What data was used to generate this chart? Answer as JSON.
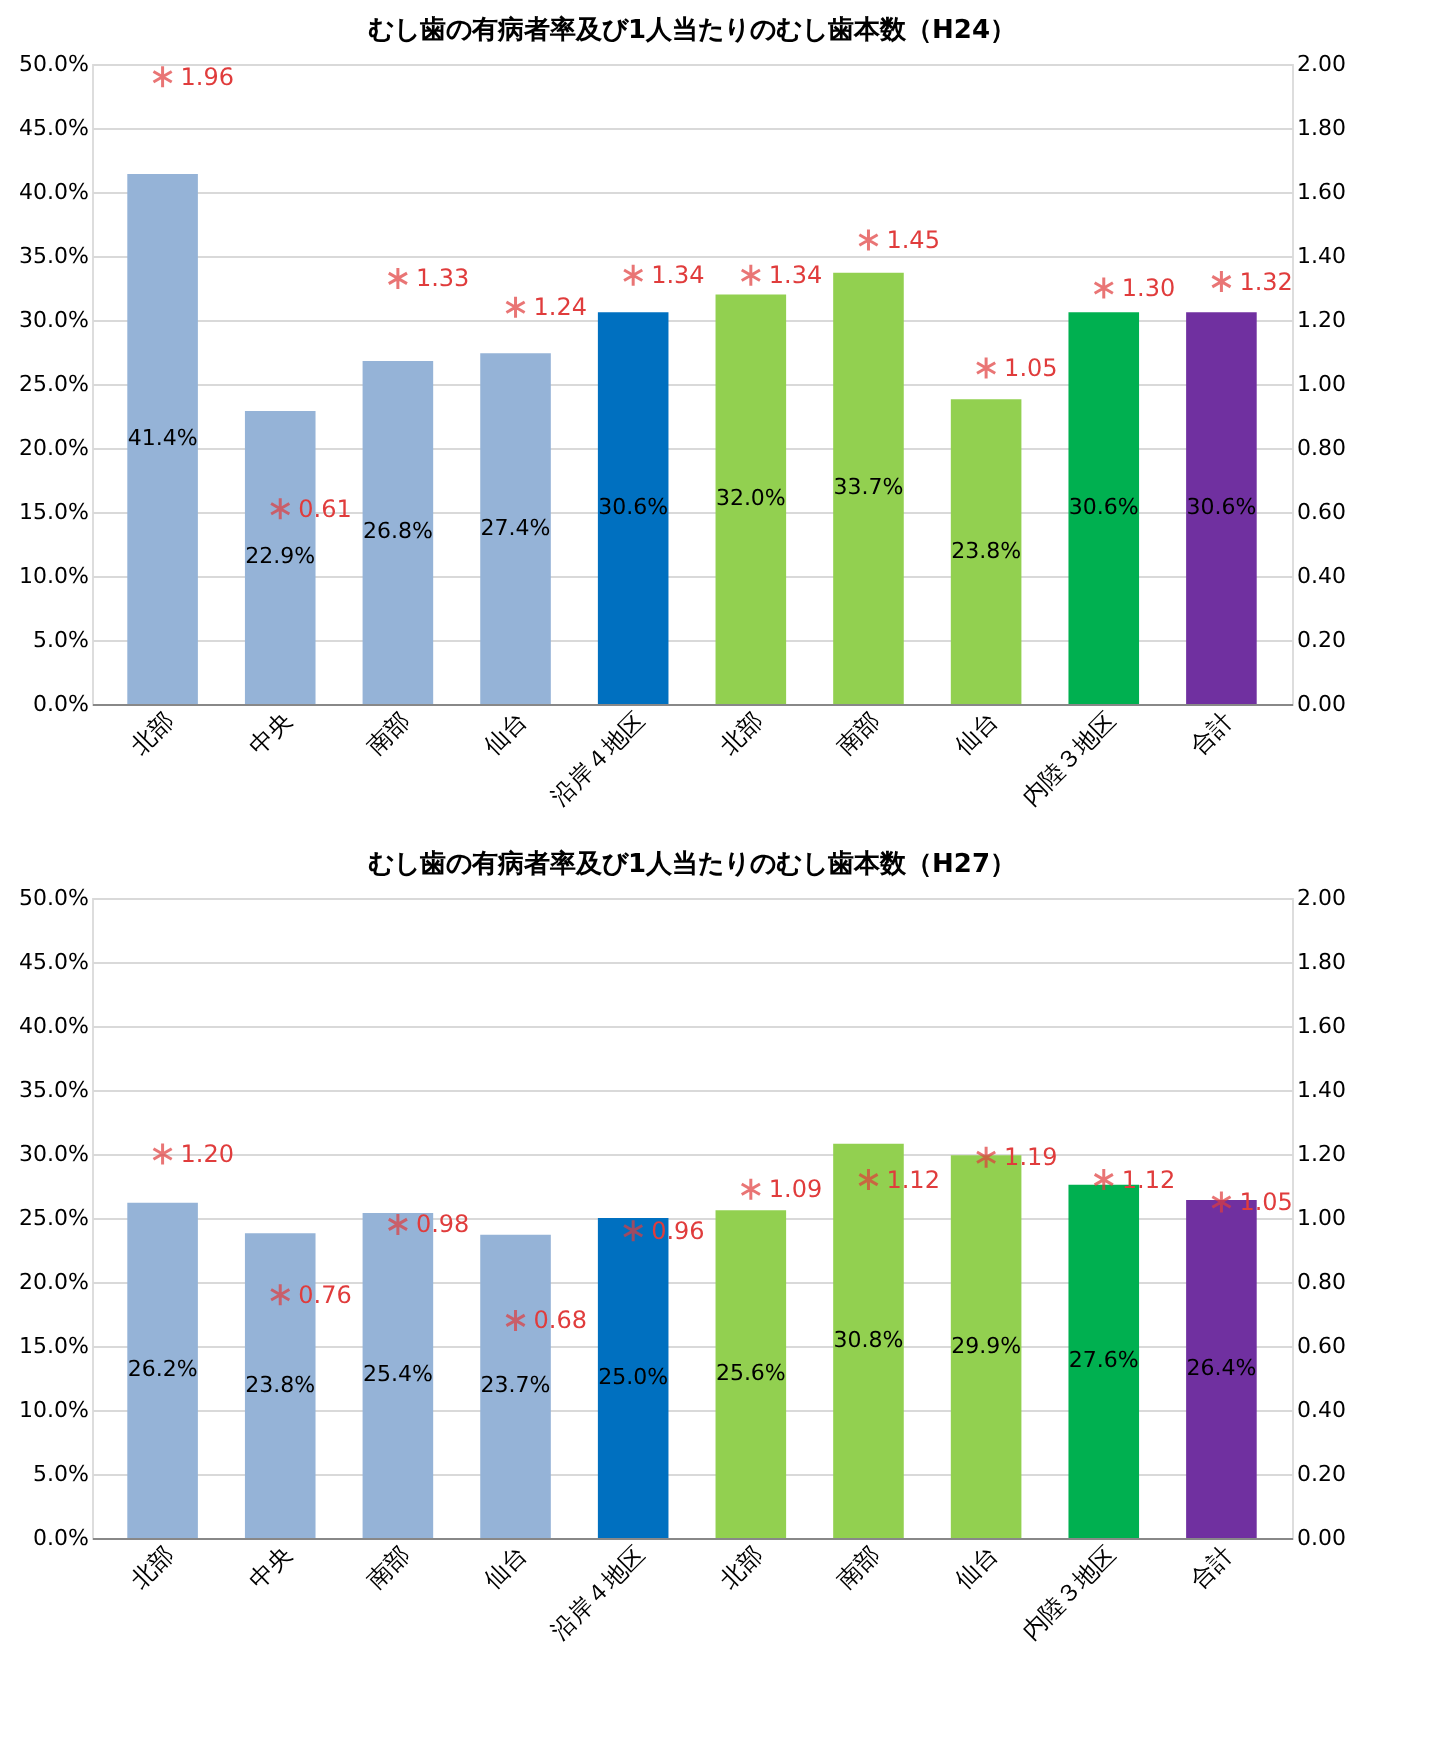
{
  "chart_data": [
    {
      "type": "bar",
      "title": "むし歯の有病者率及び1人当たりのむし歯本数（H24）",
      "categories": [
        "北部",
        "中央",
        "南部",
        "仙台",
        "沿岸４地区",
        "北部",
        "南部",
        "仙台",
        "内陸３地区",
        "合計"
      ],
      "series": [
        {
          "axis": "y",
          "colors": [
            "#95b3d7",
            "#95b3d7",
            "#95b3d7",
            "#95b3d7",
            "#0070c0",
            "#92d050",
            "#92d050",
            "#92d050",
            "#00b050",
            "#7030a0"
          ],
          "values": [
            41.4,
            22.9,
            26.8,
            27.4,
            30.6,
            32.0,
            33.7,
            23.8,
            30.6,
            30.6
          ],
          "value_labels": [
            "41.4%",
            "22.9%",
            "26.8%",
            "27.4%",
            "30.6%",
            "32.0%",
            "33.7%",
            "23.8%",
            "30.6%",
            "30.6%"
          ]
        },
        {
          "type": "scatter",
          "axis": "y2",
          "color": "#e03c3c",
          "marker": "cross",
          "values": [
            1.96,
            0.61,
            1.33,
            1.24,
            1.34,
            1.34,
            1.45,
            1.05,
            1.3,
            1.32
          ],
          "value_labels": [
            "1.96",
            "0.61",
            "1.33",
            "1.24",
            "1.34",
            "1.34",
            "1.45",
            "1.05",
            "1.30",
            "1.32"
          ]
        }
      ],
      "ylim": [
        0,
        50
      ],
      "yticks": [
        {
          "value": 0,
          "label": "0.0%"
        },
        {
          "value": 5,
          "label": "5.0%"
        },
        {
          "value": 10,
          "label": "10.0%"
        },
        {
          "value": 15,
          "label": "15.0%"
        },
        {
          "value": 20,
          "label": "20.0%"
        },
        {
          "value": 25,
          "label": "25.0%"
        },
        {
          "value": 30,
          "label": "30.0%"
        },
        {
          "value": 35,
          "label": "35.0%"
        },
        {
          "value": 40,
          "label": "40.0%"
        },
        {
          "value": 45,
          "label": "45.0%"
        },
        {
          "value": 50,
          "label": "50.0%"
        }
      ],
      "y2lim": [
        0,
        2
      ],
      "y2ticks": [
        {
          "value": 0,
          "label": "0.00"
        },
        {
          "value": 0.2,
          "label": "0.20"
        },
        {
          "value": 0.4,
          "label": "0.40"
        },
        {
          "value": 0.6,
          "label": "0.60"
        },
        {
          "value": 0.8,
          "label": "0.80"
        },
        {
          "value": 1.0,
          "label": "1.00"
        },
        {
          "value": 1.2,
          "label": "1.20"
        },
        {
          "value": 1.4,
          "label": "1.40"
        },
        {
          "value": 1.6,
          "label": "1.60"
        },
        {
          "value": 1.8,
          "label": "1.80"
        },
        {
          "value": 2.0,
          "label": "2.00"
        }
      ],
      "grid": "y"
    },
    {
      "type": "bar",
      "title": "むし歯の有病者率及び1人当たりのむし歯本数（H27）",
      "categories": [
        "北部",
        "中央",
        "南部",
        "仙台",
        "沿岸４地区",
        "北部",
        "南部",
        "仙台",
        "内陸３地区",
        "合計"
      ],
      "series": [
        {
          "axis": "y",
          "colors": [
            "#95b3d7",
            "#95b3d7",
            "#95b3d7",
            "#95b3d7",
            "#0070c0",
            "#92d050",
            "#92d050",
            "#92d050",
            "#00b050",
            "#7030a0"
          ],
          "values": [
            26.2,
            23.8,
            25.4,
            23.7,
            25.0,
            25.6,
            30.8,
            29.9,
            27.6,
            26.4
          ],
          "value_labels": [
            "26.2%",
            "23.8%",
            "25.4%",
            "23.7%",
            "25.0%",
            "25.6%",
            "30.8%",
            "29.9%",
            "27.6%",
            "26.4%"
          ]
        },
        {
          "type": "scatter",
          "axis": "y2",
          "color": "#e03c3c",
          "marker": "cross",
          "values": [
            1.2,
            0.76,
            0.98,
            0.68,
            0.96,
            1.09,
            1.12,
            1.19,
            1.12,
            1.05
          ],
          "value_labels": [
            "1.20",
            "0.76",
            "0.98",
            "0.68",
            "0.96",
            "1.09",
            "1.12",
            "1.19",
            "1.12",
            "1.05"
          ]
        }
      ],
      "ylim": [
        0,
        50
      ],
      "yticks": [
        {
          "value": 0,
          "label": "0.0%"
        },
        {
          "value": 5,
          "label": "5.0%"
        },
        {
          "value": 10,
          "label": "10.0%"
        },
        {
          "value": 15,
          "label": "15.0%"
        },
        {
          "value": 20,
          "label": "20.0%"
        },
        {
          "value": 25,
          "label": "25.0%"
        },
        {
          "value": 30,
          "label": "30.0%"
        },
        {
          "value": 35,
          "label": "35.0%"
        },
        {
          "value": 40,
          "label": "40.0%"
        },
        {
          "value": 45,
          "label": "45.0%"
        },
        {
          "value": 50,
          "label": "50.0%"
        }
      ],
      "y2lim": [
        0,
        2
      ],
      "y2ticks": [
        {
          "value": 0,
          "label": "0.00"
        },
        {
          "value": 0.2,
          "label": "0.20"
        },
        {
          "value": 0.4,
          "label": "0.40"
        },
        {
          "value": 0.6,
          "label": "0.60"
        },
        {
          "value": 0.8,
          "label": "0.80"
        },
        {
          "value": 1.0,
          "label": "1.00"
        },
        {
          "value": 1.2,
          "label": "1.20"
        },
        {
          "value": 1.4,
          "label": "1.40"
        },
        {
          "value": 1.6,
          "label": "1.60"
        },
        {
          "value": 1.8,
          "label": "1.80"
        },
        {
          "value": 2.0,
          "label": "2.00"
        }
      ],
      "grid": "y"
    }
  ]
}
